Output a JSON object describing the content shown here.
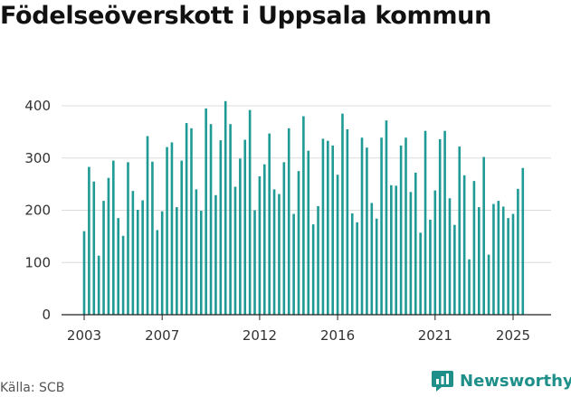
{
  "chart_data": {
    "type": "bar",
    "title": "Födelseöverskott i Uppsala kommun",
    "xlabel": "",
    "ylabel": "",
    "ylim": [
      0,
      430
    ],
    "yticks": [
      0,
      100,
      200,
      300,
      400
    ],
    "xticks": [
      {
        "label": "2003",
        "pos": 2003.0
      },
      {
        "label": "2007",
        "pos": 2007.0
      },
      {
        "label": "2012",
        "pos": 2012.0
      },
      {
        "label": "2016",
        "pos": 2016.0
      },
      {
        "label": "2021",
        "pos": 2021.0
      },
      {
        "label": "2025",
        "pos": 2025.0
      }
    ],
    "grid": true,
    "bar_color": "#1f9a94",
    "x_start": 2003.0,
    "x_step": 0.25,
    "values": [
      160,
      283,
      255,
      113,
      218,
      262,
      295,
      185,
      151,
      292,
      237,
      201,
      219,
      342,
      293,
      162,
      198,
      321,
      330,
      206,
      295,
      367,
      357,
      240,
      199,
      395,
      365,
      229,
      334,
      409,
      365,
      245,
      299,
      335,
      392,
      200,
      265,
      288,
      347,
      240,
      231,
      292,
      357,
      193,
      275,
      380,
      314,
      173,
      208,
      337,
      333,
      324,
      268,
      385,
      355,
      194,
      177,
      339,
      320,
      214,
      184,
      339,
      372,
      248,
      247,
      324,
      339,
      235,
      272,
      157,
      352,
      182,
      238,
      336,
      352,
      223,
      172,
      322,
      267,
      106,
      256,
      206,
      302,
      115,
      212,
      218,
      207,
      185,
      193,
      241,
      281
    ]
  },
  "footer": {
    "source": "Källa: SCB",
    "brand": "Newsworthy"
  }
}
